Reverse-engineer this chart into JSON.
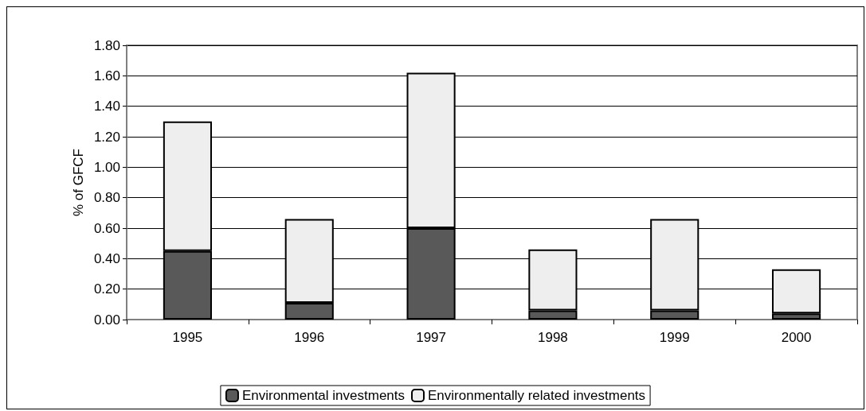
{
  "chart_data": {
    "type": "bar",
    "stacked": true,
    "ylabel": "% of GFCF",
    "categories": [
      "1995",
      "1996",
      "1997",
      "1998",
      "1999",
      "2000"
    ],
    "series": [
      {
        "name": "Environmental investments",
        "color": "#595959",
        "values": [
          0.45,
          0.11,
          0.6,
          0.06,
          0.06,
          0.04
        ]
      },
      {
        "name": "Environmentally related investments",
        "color": "#eeeeee",
        "values": [
          0.85,
          0.55,
          1.02,
          0.4,
          0.6,
          0.29
        ]
      }
    ],
    "ylim": [
      0,
      1.8
    ],
    "yticks": [
      {
        "value": 0,
        "label": "0.00"
      },
      {
        "value": 0.2,
        "label": "0.20"
      },
      {
        "value": 0.4,
        "label": "0.40"
      },
      {
        "value": 0.6,
        "label": "0.60"
      },
      {
        "value": 0.8,
        "label": "0.80"
      },
      {
        "value": 1.0,
        "label": "1.00"
      },
      {
        "value": 1.2,
        "label": "1.20"
      },
      {
        "value": 1.4,
        "label": "1.40"
      },
      {
        "value": 1.6,
        "label": "1.60"
      },
      {
        "value": 1.8,
        "label": "1.80"
      }
    ],
    "grid": "y",
    "legend": "bottom"
  }
}
